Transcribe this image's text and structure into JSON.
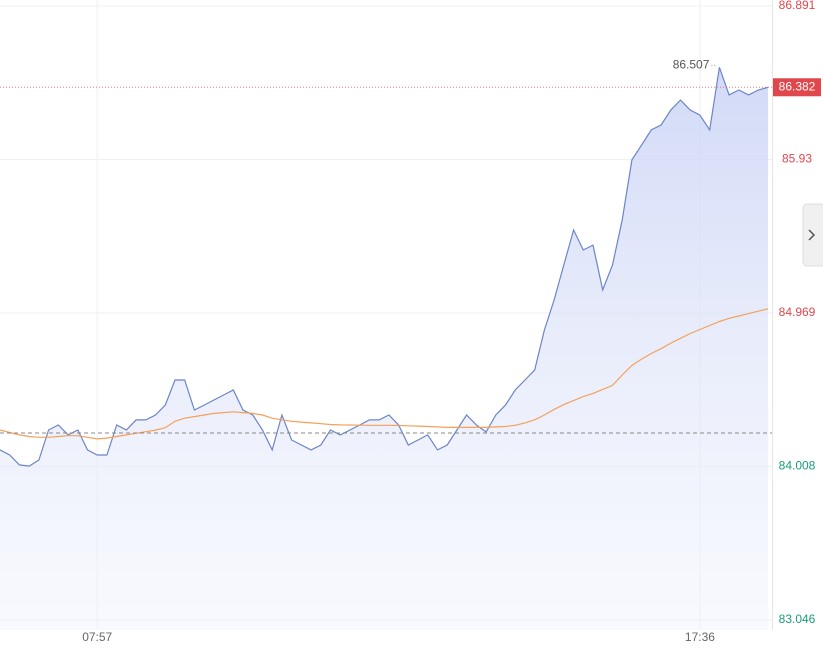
{
  "chart_data": {
    "type": "line",
    "categories": [
      null,
      null,
      null,
      null,
      null,
      null,
      null,
      null,
      null,
      null,
      "07:57",
      null,
      null,
      null,
      null,
      null,
      null,
      null,
      null,
      null,
      null,
      null,
      null,
      null,
      null,
      null,
      null,
      null,
      null,
      null,
      null,
      null,
      null,
      null,
      null,
      null,
      null,
      null,
      null,
      null,
      null,
      null,
      null,
      null,
      null,
      null,
      null,
      null,
      null,
      null,
      null,
      null,
      null,
      null,
      null,
      null,
      null,
      null,
      null,
      null,
      null,
      null,
      null,
      null,
      null,
      null,
      null,
      null,
      null,
      null,
      null,
      null,
      "17:36",
      null,
      null,
      null,
      null,
      null,
      null,
      null
    ],
    "series": [
      {
        "color": "#6b85c9",
        "values": [
          84.111,
          84.079,
          84.017,
          84.01,
          84.048,
          84.236,
          84.267,
          84.205,
          84.236,
          84.111,
          84.079,
          84.079,
          84.267,
          84.236,
          84.299,
          84.299,
          84.33,
          84.392,
          84.549,
          84.549,
          84.361,
          84.392,
          84.424,
          84.455,
          84.486,
          84.361,
          84.33,
          84.236,
          84.111,
          84.33,
          84.173,
          84.142,
          84.111,
          84.142,
          84.236,
          84.205,
          84.236,
          84.267,
          84.299,
          84.299,
          84.33,
          84.267,
          84.142,
          84.173,
          84.205,
          84.111,
          84.142,
          84.236,
          84.33,
          84.267,
          84.223,
          84.33,
          84.392,
          84.486,
          84.549,
          84.612,
          84.862,
          85.05,
          85.269,
          85.488,
          85.363,
          85.394,
          85.113,
          85.269,
          85.551,
          85.927,
          86.021,
          86.115,
          86.146,
          86.24,
          86.302,
          86.24,
          86.208,
          86.115,
          86.507,
          86.334,
          86.365,
          86.334,
          86.365,
          86.382
        ]
      },
      {
        "color": "#f5a05a",
        "values": [
          84.236,
          84.22,
          84.205,
          84.195,
          84.19,
          84.19,
          84.195,
          84.2,
          84.2,
          84.19,
          84.18,
          84.185,
          84.195,
          84.205,
          84.215,
          84.225,
          84.235,
          84.25,
          84.29,
          84.31,
          84.32,
          84.33,
          84.34,
          84.345,
          84.35,
          84.345,
          84.34,
          84.33,
          84.31,
          84.3,
          84.29,
          84.285,
          84.28,
          84.275,
          84.27,
          84.268,
          84.267,
          84.266,
          84.265,
          84.265,
          84.265,
          84.264,
          84.262,
          84.26,
          84.258,
          84.255,
          84.252,
          84.252,
          84.252,
          84.252,
          84.252,
          84.255,
          84.258,
          84.265,
          84.28,
          84.3,
          84.33,
          84.365,
          84.395,
          84.42,
          84.445,
          84.465,
          84.49,
          84.515,
          84.58,
          84.64,
          84.68,
          84.715,
          84.745,
          84.78,
          84.81,
          84.84,
          84.865,
          84.89,
          84.915,
          84.935,
          84.95,
          84.965,
          84.98,
          84.995
        ]
      }
    ],
    "prev_close": 84.217,
    "ylim": [
      83.046,
      86.891
    ],
    "yticks": [
      83.046,
      84.008,
      84.969,
      85.93,
      86.891
    ],
    "grid": true
  }
}
